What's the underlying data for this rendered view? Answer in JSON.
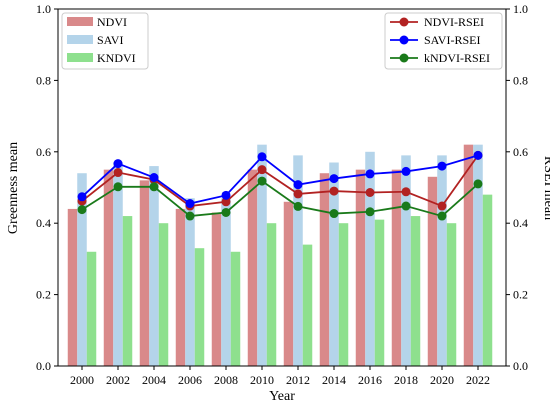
{
  "chart_data": {
    "type": "bar",
    "title": "",
    "xlabel": "Year",
    "ylabel_left": "Greenness mean",
    "ylabel_right": "RSEI mean",
    "categories": [
      "2000",
      "2002",
      "2004",
      "2006",
      "2008",
      "2010",
      "2012",
      "2014",
      "2016",
      "2018",
      "2020",
      "2022"
    ],
    "ylim_left": [
      0,
      1
    ],
    "ylim_right": [
      0,
      1
    ],
    "yticks_left": [
      "0.0",
      "0.2",
      "0.4",
      "0.6",
      "0.8",
      "1.0"
    ],
    "yticks_right": [
      "0.0",
      "0.2",
      "0.4",
      "0.6",
      "0.8",
      "1.0"
    ],
    "grid": false,
    "bar_series": [
      {
        "name": "NDVI",
        "color": "#d9898a",
        "values": [
          0.44,
          0.55,
          0.52,
          0.44,
          0.43,
          0.55,
          0.46,
          0.54,
          0.55,
          0.55,
          0.53,
          0.62
        ]
      },
      {
        "name": "SAVI",
        "color": "#b4d4ea",
        "values": [
          0.54,
          0.57,
          0.56,
          0.47,
          0.47,
          0.62,
          0.59,
          0.57,
          0.6,
          0.59,
          0.59,
          0.62
        ]
      },
      {
        "name": "KNDVI",
        "color": "#8ee08e",
        "values": [
          0.32,
          0.42,
          0.4,
          0.33,
          0.32,
          0.4,
          0.34,
          0.4,
          0.41,
          0.42,
          0.4,
          0.48
        ]
      }
    ],
    "line_series": [
      {
        "name": "NDVI-RSEI",
        "color": "#b22222",
        "values": [
          0.462,
          0.542,
          0.522,
          0.448,
          0.46,
          0.55,
          0.482,
          0.49,
          0.486,
          0.488,
          0.448,
          0.59
        ]
      },
      {
        "name": "SAVI-RSEI",
        "color": "#0000ff",
        "values": [
          0.474,
          0.567,
          0.528,
          0.455,
          0.478,
          0.586,
          0.508,
          0.525,
          0.538,
          0.545,
          0.56,
          0.59
        ]
      },
      {
        "name": "kNDVI-RSEI",
        "color": "#1a7a1a",
        "values": [
          0.438,
          0.502,
          0.502,
          0.42,
          0.43,
          0.518,
          0.447,
          0.427,
          0.432,
          0.448,
          0.42,
          0.51
        ]
      }
    ],
    "legend_bars_position": "top-left",
    "legend_lines_position": "top-right"
  }
}
